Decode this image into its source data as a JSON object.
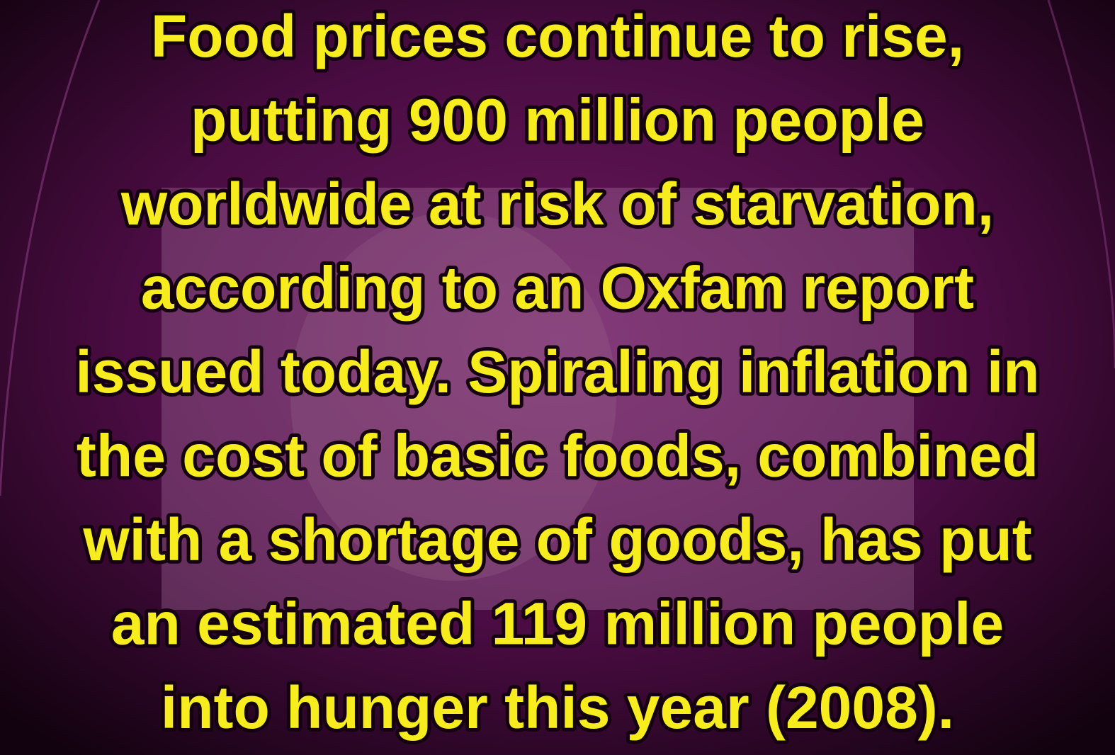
{
  "text": {
    "lines": [
      "Food prices continue to rise,",
      "putting 900 million people",
      "worldwide at risk of starvation,",
      "according to an Oxfam report",
      "issued today. Spiraling inflation in",
      "the cost of basic foods, combined",
      "with a shortage of goods, has put",
      "an estimated 119 million people",
      "into hunger this year (2008)."
    ]
  }
}
